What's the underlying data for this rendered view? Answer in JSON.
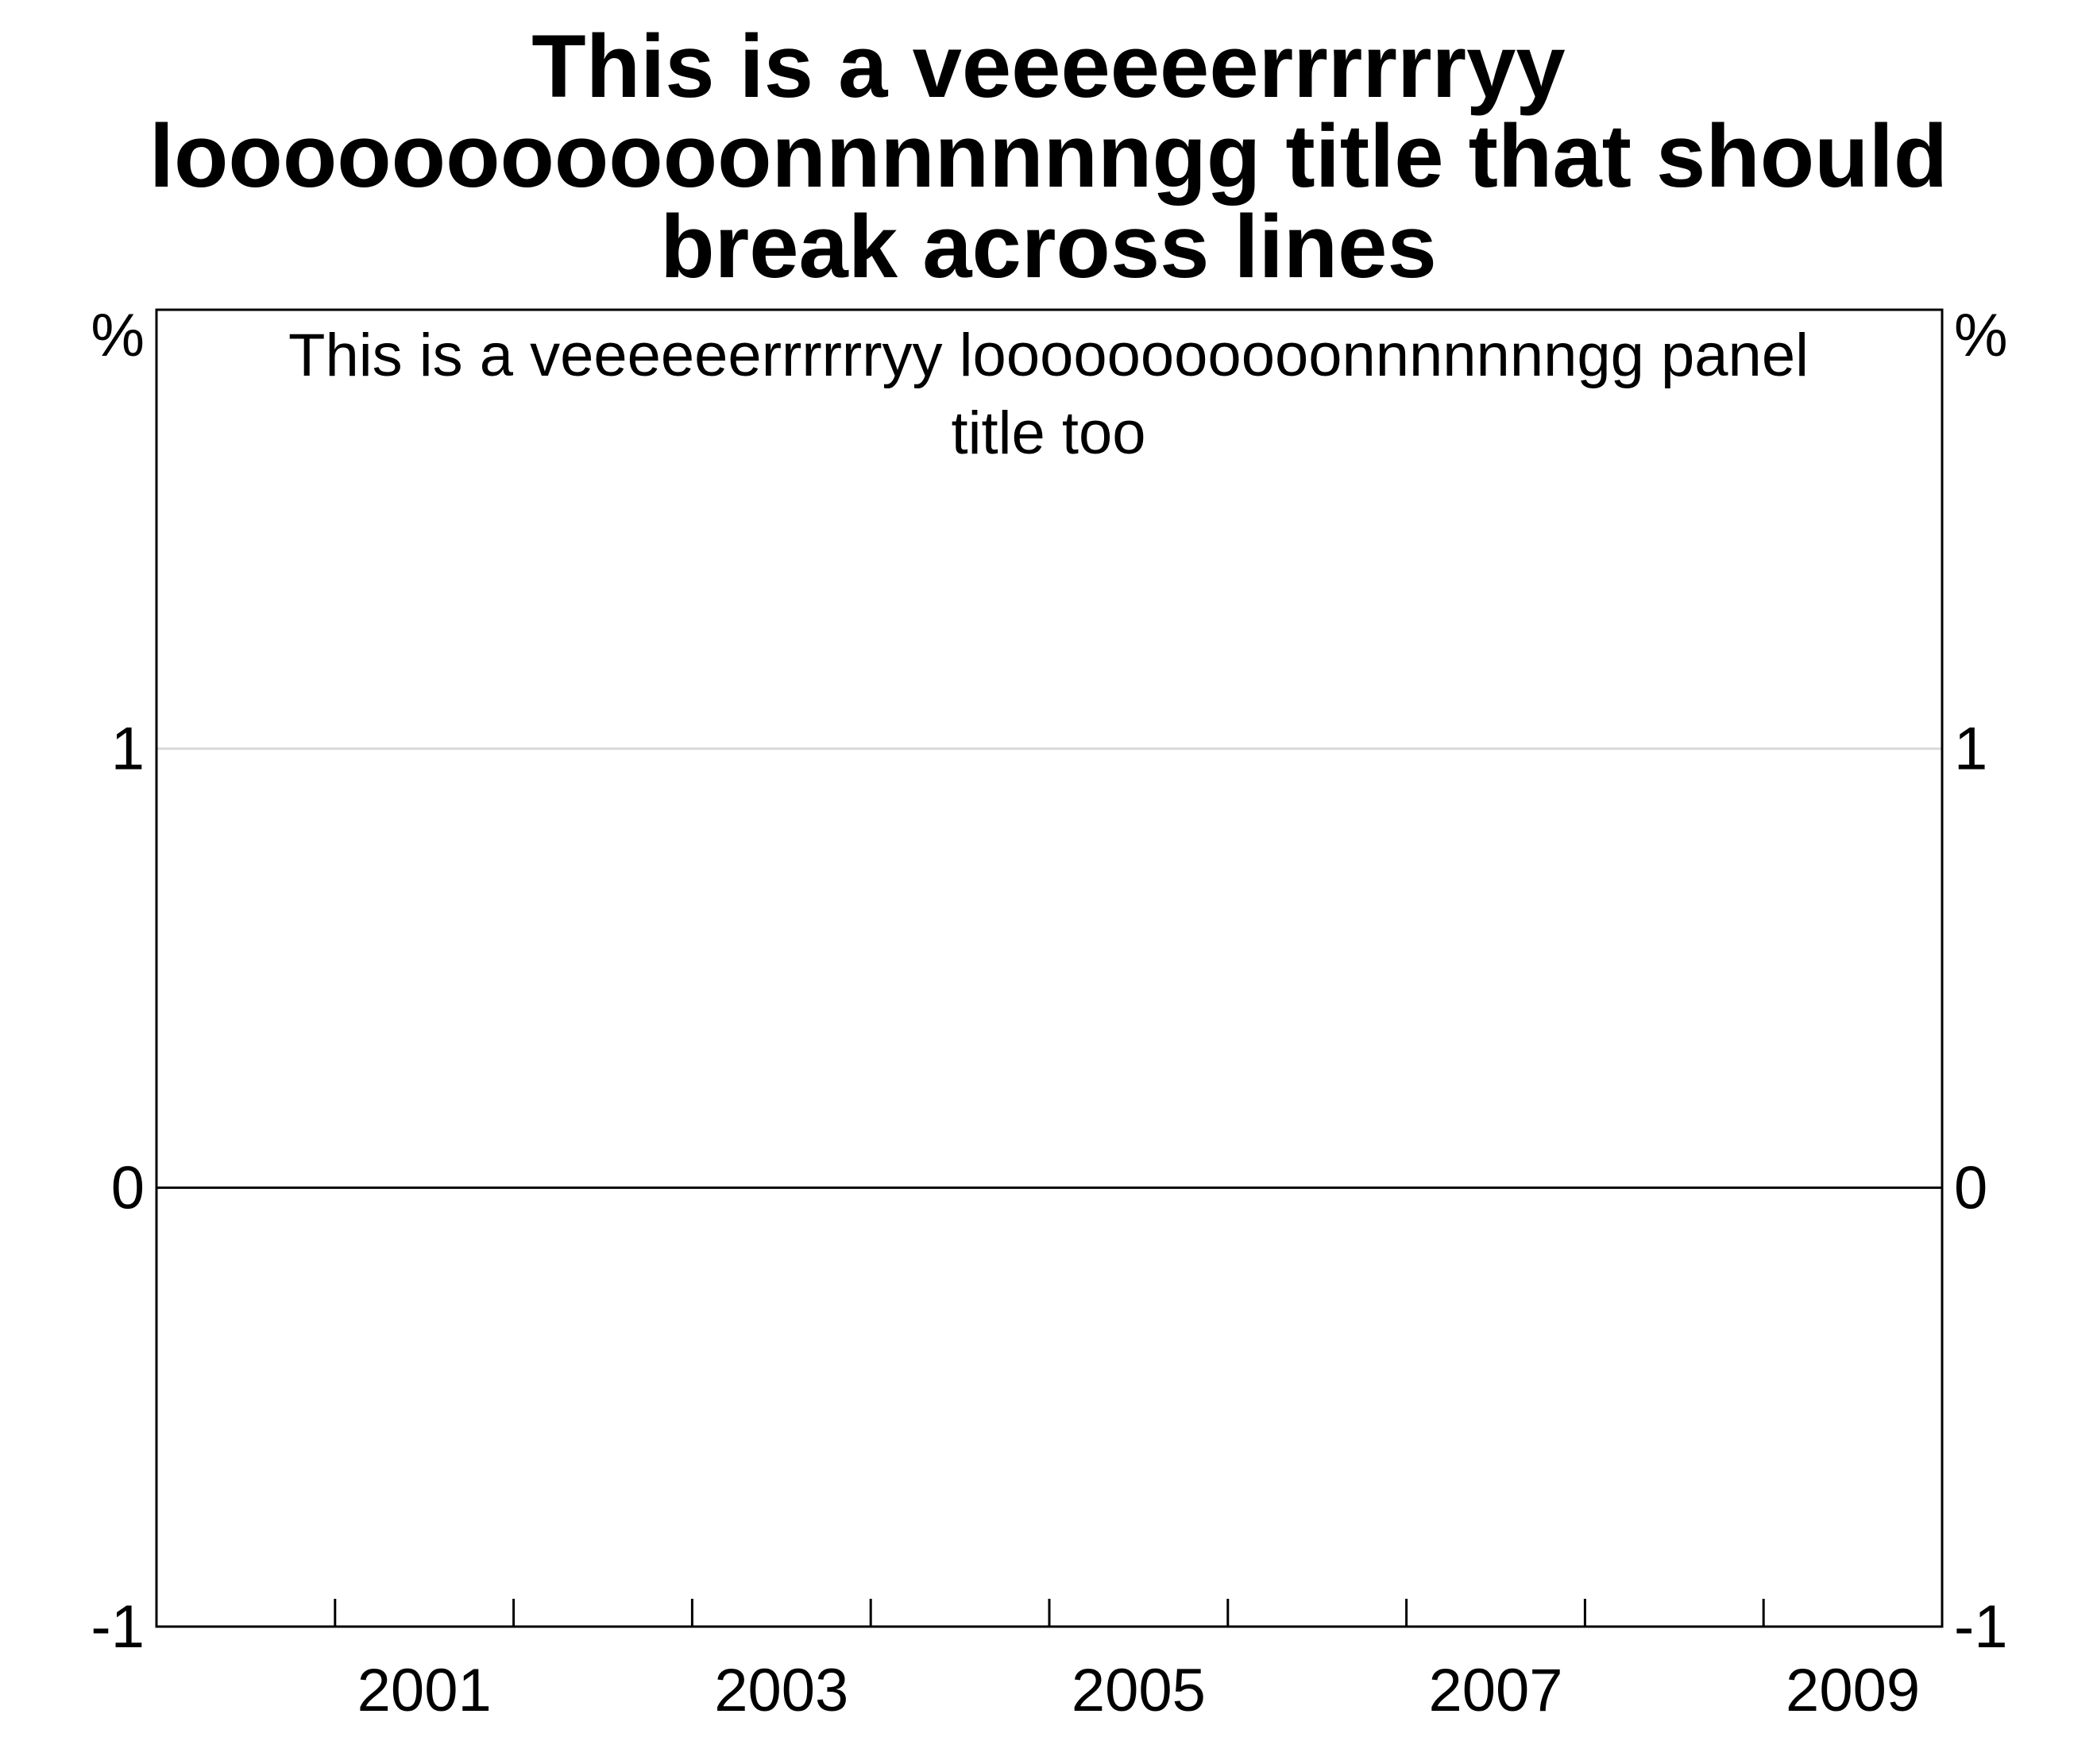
{
  "chart_data": {
    "type": "line",
    "title": "This is a veeeeeerrrrrryy looooooooooonnnnnnngg title that should break across lines",
    "title_lines": [
      "This is a veeeeeerrrrrryy",
      "looooooooooonnnnnnngg title that should",
      "break across lines"
    ],
    "panel_title": "This is a veeeeeerrrrrryy looooooooooonnnnnnngg panel title too",
    "panel_title_lines": [
      "This is a veeeeeerrrrrryy looooooooooonnnnnnngg panel",
      "title too"
    ],
    "y_unit_left": "%",
    "y_unit_right": "%",
    "ylim": [
      -1,
      2
    ],
    "y_ticks": [
      1,
      0,
      -1
    ],
    "y_tick_labels": [
      "1",
      "0",
      "-1"
    ],
    "xlim": [
      2000,
      2010
    ],
    "x_ticks": [
      2001,
      2002,
      2003,
      2004,
      2005,
      2006,
      2007,
      2008,
      2009
    ],
    "x_tick_labels": [
      "2001",
      "2003",
      "2005",
      "2007",
      "2009"
    ],
    "x_label_positions": [
      2001.5,
      2003.5,
      2005.5,
      2007.5,
      2009.5
    ],
    "series": [],
    "grid": true,
    "gridline_color": "#d9d9d9",
    "zero_line": true
  }
}
